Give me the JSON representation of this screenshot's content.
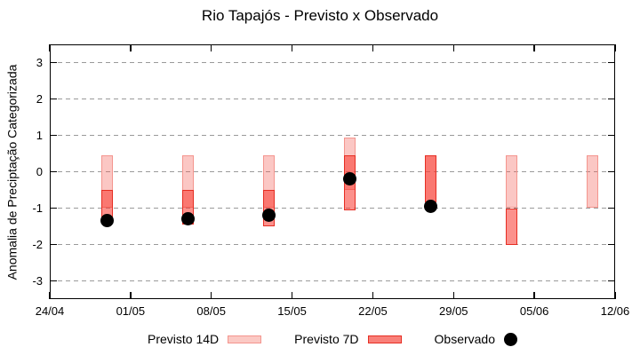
{
  "chart_data": {
    "type": "bar",
    "subtype": "range-boxes-with-observed-points",
    "title": "Rio Tapajós - Previsto x Observado",
    "ylabel": "Anomalia de Preciptação Categorizada",
    "xlabel": "",
    "ylim": [
      -3.5,
      3.5
    ],
    "y_tick_labels": [
      "3",
      "2",
      "1",
      "0",
      "-1",
      "-2",
      "-3"
    ],
    "y_tick_values": [
      3,
      2,
      1,
      0,
      -1,
      -2,
      -3
    ],
    "x_tick_labels": [
      "24/04",
      "01/05",
      "08/05",
      "15/05",
      "22/05",
      "29/05",
      "05/06",
      "12/06"
    ],
    "x_tick_day_offsets": [
      0,
      7,
      14,
      21,
      28,
      35,
      42,
      49
    ],
    "grid": "horizontal-dashed",
    "legend_position": "bottom",
    "categories": [
      "29/04",
      "06/05",
      "13/05",
      "20/05",
      "27/05",
      "03/06",
      "10/06"
    ],
    "category_day_offsets": [
      5,
      12,
      19,
      26,
      33,
      40,
      47
    ],
    "series": [
      {
        "name": "Previsto 14D",
        "style": "box",
        "ranges": [
          [
            -1.0,
            0.45
          ],
          [
            -1.0,
            0.45
          ],
          [
            -1.0,
            0.45
          ],
          [
            -0.5,
            0.95
          ],
          [
            -0.85,
            0.45
          ],
          [
            -1.0,
            0.45
          ],
          [
            -1.0,
            0.45
          ]
        ]
      },
      {
        "name": "Previsto 7D",
        "style": "box",
        "ranges": [
          [
            -1.25,
            -0.5
          ],
          [
            -1.45,
            -0.5
          ],
          [
            -1.5,
            -0.5
          ],
          [
            -1.05,
            0.45
          ],
          [
            -0.85,
            0.45
          ],
          [
            -2.0,
            -1.0
          ],
          null
        ]
      },
      {
        "name": "Observado",
        "style": "point",
        "values": [
          -1.35,
          -1.3,
          -1.2,
          -0.2,
          -0.95,
          null,
          null
        ]
      }
    ]
  },
  "colors": {
    "previsto14_fill": "rgba(244,95,85,0.35)",
    "previsto14_border": "#f4958e",
    "previsto7_fill": "rgba(250,55,45,0.55)",
    "previsto7_border": "#e62e23",
    "previsto14_swatch_fill": "#fbc9c4",
    "previsto7_swatch_fill": "#f98079",
    "observado_dot": "#000000",
    "grid": "#9a9a9a",
    "axis": "#000000"
  }
}
